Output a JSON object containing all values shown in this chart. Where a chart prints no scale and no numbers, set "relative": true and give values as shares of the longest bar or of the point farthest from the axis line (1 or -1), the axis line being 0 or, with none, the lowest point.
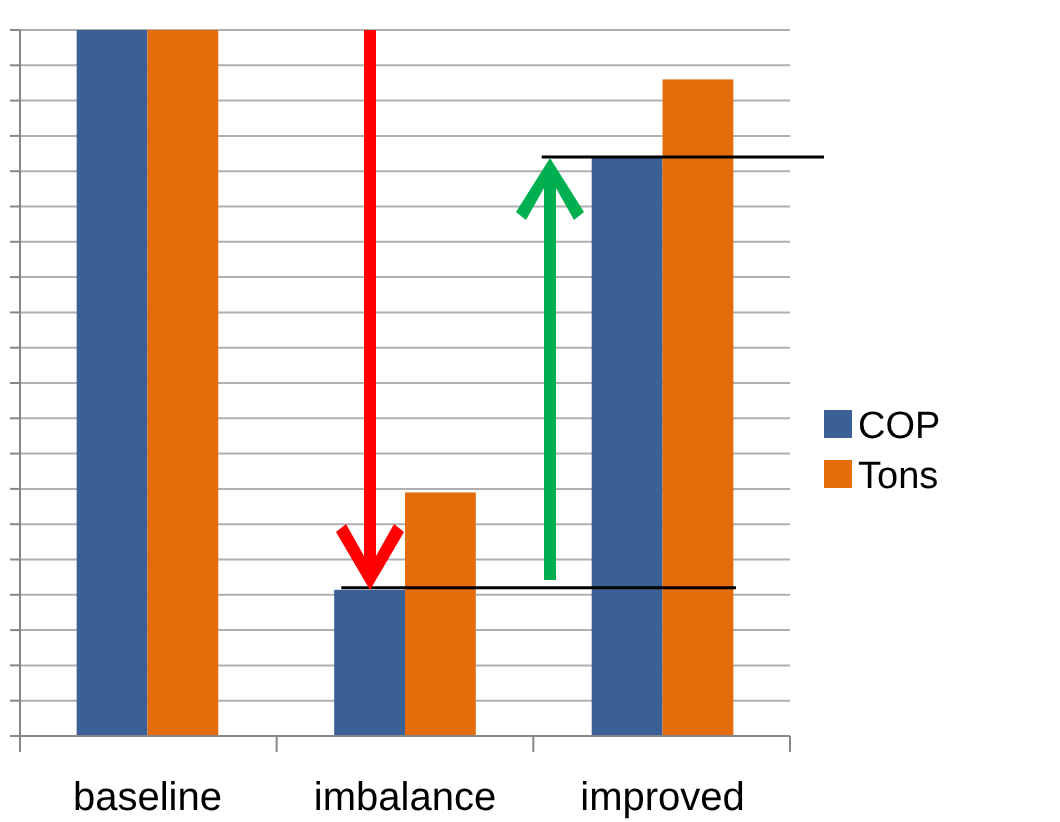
{
  "chart_data": {
    "type": "bar",
    "relative": true,
    "categories": [
      "baseline",
      "imbalance",
      "improved"
    ],
    "series": [
      {
        "name": "COP",
        "color": "#3a6095",
        "values": [
          1,
          0.207,
          0.82
        ]
      },
      {
        "name": "Tons",
        "color": "#e46c0a",
        "values": [
          1,
          0.345,
          0.93
        ]
      }
    ],
    "grid": "y",
    "legend": "right",
    "ref_lines": [
      {
        "axis": "y",
        "value": 0.21,
        "color": "#000000"
      },
      {
        "axis": "y",
        "value": 0.82,
        "color": "#000000"
      }
    ]
  }
}
